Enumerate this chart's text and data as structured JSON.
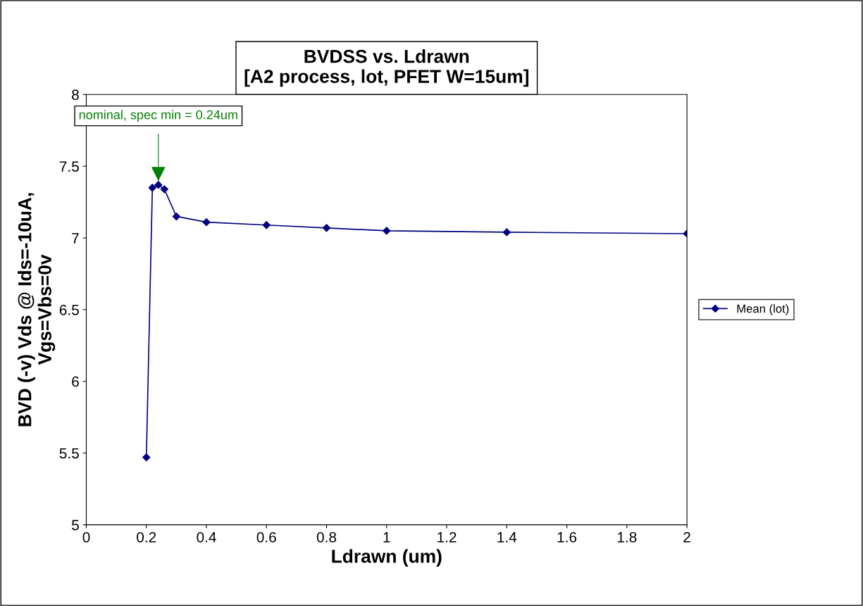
{
  "chart_data": {
    "type": "line",
    "title": "BVDSS vs. Ldrawn\n[A2 process, lot, PFET W=15um]",
    "xlabel": "Ldrawn (um)",
    "ylabel": "BVD (-v) Vds @ Ids=-10uA,\nVgs=Vbs=0v",
    "x": [
      0.2,
      0.22,
      0.24,
      0.26,
      0.3,
      0.4,
      0.6,
      0.8,
      1.0,
      1.4,
      2.0
    ],
    "series": [
      {
        "name": "Mean (lot)",
        "color": "#000080",
        "values": [
          5.47,
          7.35,
          7.37,
          7.34,
          7.15,
          7.11,
          7.09,
          7.07,
          7.05,
          7.04,
          7.03
        ]
      }
    ],
    "annotations": [
      {
        "text": "nominal, spec min = 0.24um",
        "x": 0.24,
        "y": 7.37
      }
    ],
    "xlim": [
      0,
      2
    ],
    "xticks": [
      0,
      0.2,
      0.4,
      0.6,
      0.8,
      1,
      1.2,
      1.4,
      1.6,
      1.8,
      2
    ],
    "ylim": [
      5,
      8
    ],
    "yticks": [
      5,
      5.5,
      6,
      6.5,
      7,
      7.5,
      8
    ],
    "grid": false,
    "legend": "right",
    "marker": "diamond",
    "line_style": "solid"
  }
}
